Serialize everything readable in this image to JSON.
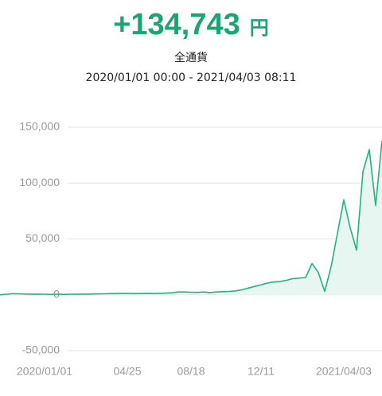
{
  "header": {
    "amount": "+134,743",
    "unit": "円",
    "currency": "全通貨",
    "period": "2020/01/01 00:00 - 2021/04/03 08:11"
  },
  "chart_data": {
    "type": "line",
    "color": "#23b283",
    "fill": "#e7f6f1",
    "grid": true,
    "categories": [
      null,
      null,
      null,
      null,
      null,
      null,
      null,
      "2020/01/01",
      null,
      null,
      null,
      null,
      null,
      null,
      null,
      null,
      null,
      null,
      null,
      null,
      "04/25",
      null,
      null,
      null,
      null,
      null,
      null,
      null,
      null,
      null,
      "08/18",
      null,
      null,
      null,
      null,
      null,
      null,
      null,
      null,
      null,
      null,
      "12/11",
      null,
      null,
      null,
      null,
      null,
      null,
      null,
      null,
      null,
      null,
      null,
      null,
      "2021/04/03",
      null,
      null,
      null,
      null,
      null,
      null
    ],
    "values": [
      0,
      500,
      1000,
      800,
      700,
      600,
      700,
      500,
      400,
      500,
      400,
      500,
      600,
      600,
      700,
      800,
      900,
      1000,
      1100,
      1200,
      1200,
      1100,
      1200,
      1300,
      1200,
      1300,
      1500,
      1800,
      2500,
      2500,
      2300,
      2200,
      2500,
      2000,
      2500,
      2800,
      3000,
      3500,
      4500,
      6000,
      7500,
      9000,
      10500,
      11500,
      12000,
      13000,
      14500,
      15000,
      15500,
      28000,
      20000,
      3000,
      25000,
      55000,
      85000,
      60000,
      40000,
      110000,
      130000,
      80000,
      138000
    ],
    "ylim": [
      -50000,
      150000
    ],
    "yticks": [
      {
        "value": -50000,
        "label": "-50,000"
      },
      0,
      {
        "value": 50000,
        "label": "50,000"
      },
      {
        "value": 100000,
        "label": "100,000"
      },
      {
        "value": 150000,
        "label": "150,000"
      }
    ]
  }
}
